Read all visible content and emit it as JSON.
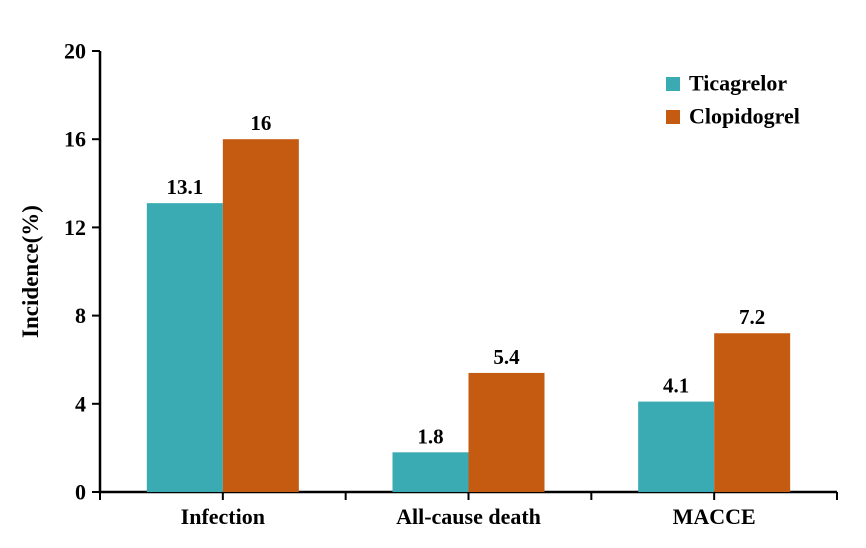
{
  "chart_data": {
    "type": "bar",
    "title": "",
    "categories": [
      "Infection",
      "All-cause death",
      "MACCE"
    ],
    "series": [
      {
        "name": "Ticagrelor",
        "color": "#3AABB3",
        "values": [
          13.1,
          1.8,
          4.1
        ],
        "labels": [
          "13.1",
          "1.8",
          "4.1"
        ]
      },
      {
        "name": "Clopidogrel",
        "color": "#C55A11",
        "values": [
          16,
          5.4,
          7.2
        ],
        "labels": [
          "16",
          "5.4",
          "7.2"
        ]
      }
    ],
    "xlabel": "",
    "ylabel": "Incidence(%)",
    "ylim": [
      0,
      20
    ],
    "yticks": [
      "0",
      "4",
      "8",
      "12",
      "16",
      "20"
    ],
    "grid": false,
    "legend_position": "top-right",
    "axis_color": "#000000"
  }
}
